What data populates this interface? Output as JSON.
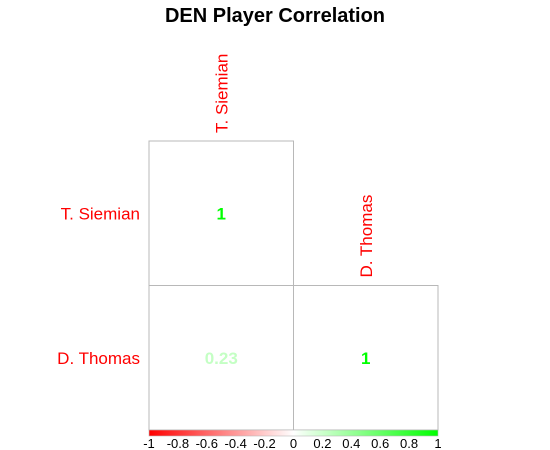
{
  "chart_data": {
    "type": "heatmap",
    "title": "DEN Player Correlation",
    "variables": [
      "T. Siemian",
      "D. Thomas"
    ],
    "matrix": [
      [
        1,
        0.23
      ],
      [
        0.23,
        1
      ]
    ],
    "cells": [
      {
        "row": "T. Siemian",
        "col": "T. Siemian",
        "value": 1,
        "label": "1"
      },
      {
        "row": "D. Thomas",
        "col": "T. Siemian",
        "value": 0.23,
        "label": "0.23"
      },
      {
        "row": "D. Thomas",
        "col": "D. Thomas",
        "value": 1,
        "label": "1"
      }
    ],
    "color_scale": {
      "range": [
        -1,
        1
      ],
      "low_color": "#ff0000",
      "mid_color": "#ffffff",
      "high_color": "#00ff00",
      "ticks": [
        "-1",
        "-0.8",
        "-0.6",
        "-0.4",
        "-0.2",
        "0",
        "0.2",
        "0.4",
        "0.6",
        "0.8",
        "1"
      ]
    },
    "layout": "lower-triangle",
    "legend_position": "bottom"
  },
  "colors": {
    "label": "#ff0000",
    "grid": "#b8b8b8"
  }
}
